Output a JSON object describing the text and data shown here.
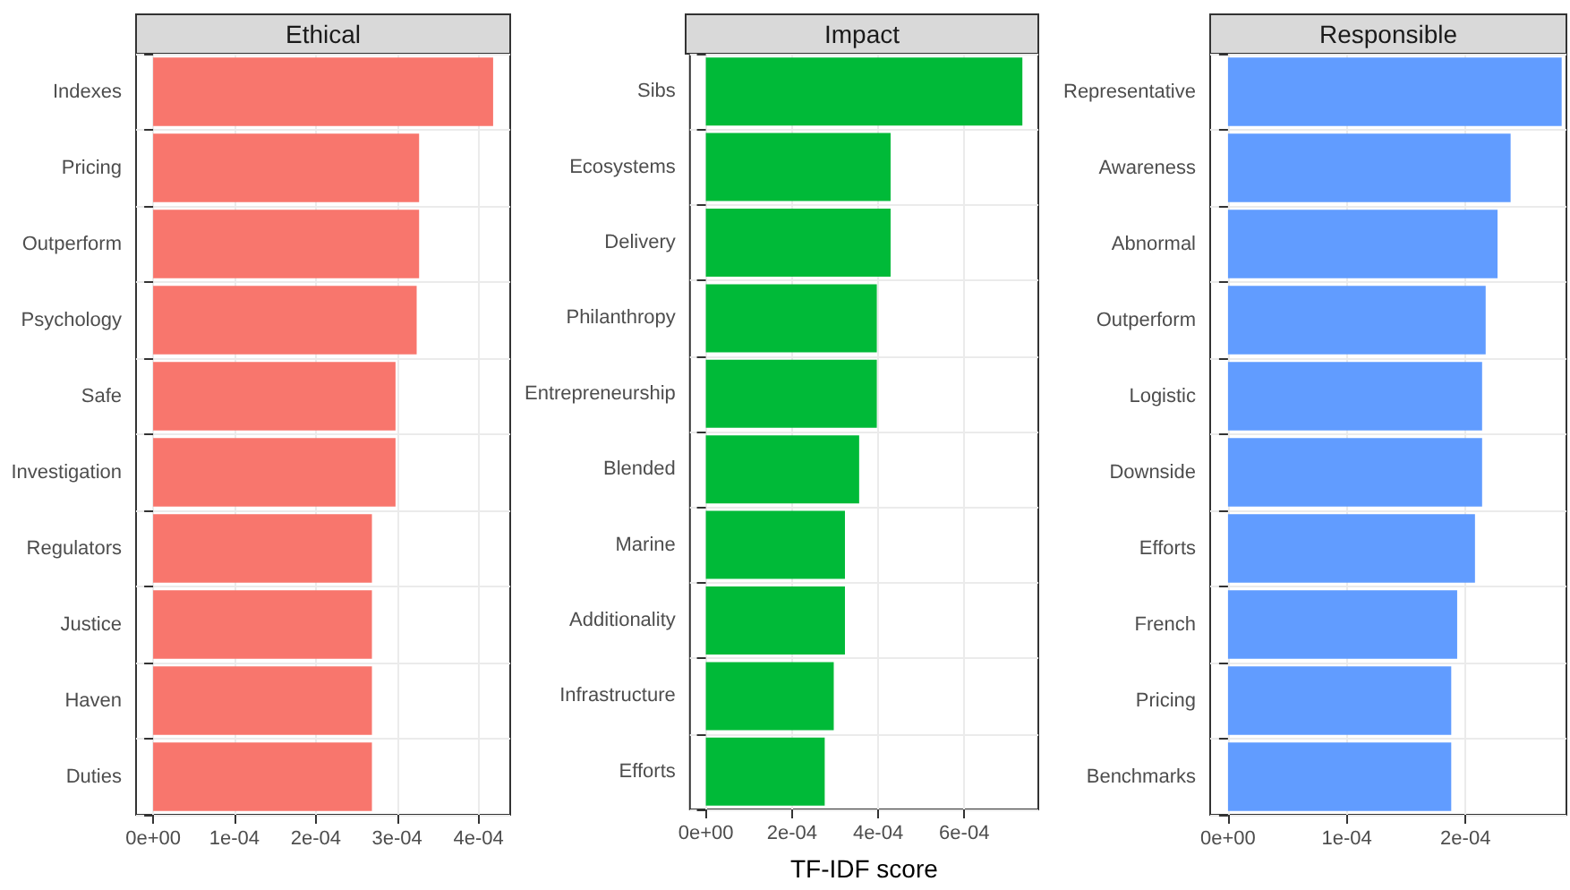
{
  "chart_data": [
    {
      "type": "bar",
      "orientation": "horizontal",
      "title": "Ethical",
      "categories": [
        "Indexes",
        "Pricing",
        "Outperform",
        "Psychology",
        "Safe",
        "Investigation",
        "Regulators",
        "Justice",
        "Haven",
        "Duties"
      ],
      "values": [
        0.000418,
        0.000327,
        0.000327,
        0.000324,
        0.000298,
        0.000298,
        0.000269,
        0.000269,
        0.000269,
        0.000269
      ],
      "color": "#f8766d",
      "xlim": [
        -2.1e-05,
        0.000439
      ],
      "xticks": [
        {
          "value": 0,
          "label": "0e+00"
        },
        {
          "value": 0.0001,
          "label": "1e-04"
        },
        {
          "value": 0.0002,
          "label": "2e-04"
        },
        {
          "value": 0.0003,
          "label": "3e-04"
        },
        {
          "value": 0.0004,
          "label": "4e-04"
        }
      ],
      "grid": true
    },
    {
      "type": "bar",
      "orientation": "horizontal",
      "title": "Impact",
      "xlabel": "TF-IDF score",
      "categories": [
        "Sibs",
        "Ecosystems",
        "Delivery",
        "Philanthropy",
        "Entrepreneurship",
        "Blended",
        "Marine",
        "Additionality",
        "Infrastructure",
        "Efforts"
      ],
      "values": [
        0.000735,
        0.000429,
        0.000429,
        0.000397,
        0.000397,
        0.000356,
        0.000323,
        0.000323,
        0.000297,
        0.000276
      ],
      "color": "#00ba38",
      "xlim": [
        -3.7e-05,
        0.000772
      ],
      "xticks": [
        {
          "value": 0,
          "label": "0e+00"
        },
        {
          "value": 0.0002,
          "label": "2e-04"
        },
        {
          "value": 0.0004,
          "label": "4e-04"
        },
        {
          "value": 0.0006,
          "label": "6e-04"
        }
      ],
      "grid": true
    },
    {
      "type": "bar",
      "orientation": "horizontal",
      "title": "Responsible",
      "categories": [
        "Representative",
        "Awareness",
        "Abnormal",
        "Outperform",
        "Logistic",
        "Downside",
        "Efforts",
        "French",
        "Pricing",
        "Benchmarks"
      ],
      "values": [
        0.000281,
        0.000238,
        0.000227,
        0.000217,
        0.000214,
        0.000214,
        0.000208,
        0.000193,
        0.000188,
        0.000188
      ],
      "color": "#619cff",
      "xlim": [
        -1.5e-05,
        0.000285
      ],
      "xticks": [
        {
          "value": 0,
          "label": "0e+00"
        },
        {
          "value": 0.0001,
          "label": "1e-04"
        },
        {
          "value": 0.0002,
          "label": "2e-04"
        }
      ],
      "grid": true
    }
  ]
}
